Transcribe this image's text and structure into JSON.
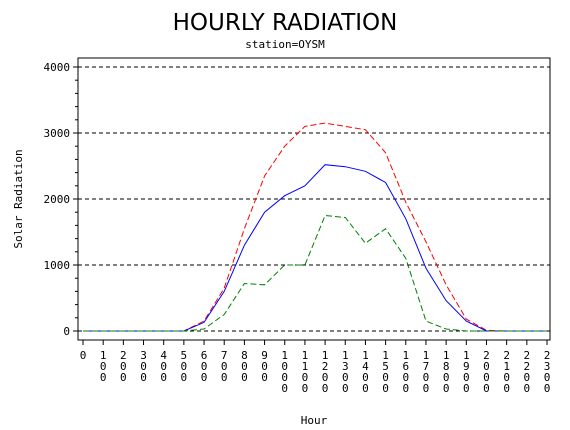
{
  "chart_data": {
    "type": "line",
    "title": "HOURLY RADIATION",
    "subtitle": "station=OYSM",
    "xlabel": "Hour",
    "ylabel": "Solar Radiation",
    "ylim": [
      0,
      4000
    ],
    "yticks": [
      0,
      1000,
      2000,
      3000,
      4000
    ],
    "ytick_labels": [
      "0",
      "1000",
      "2000",
      "3000",
      "4000"
    ],
    "xlim": [
      0,
      2300
    ],
    "x": [
      0,
      100,
      200,
      300,
      400,
      500,
      600,
      700,
      800,
      900,
      1000,
      1100,
      1200,
      1300,
      1400,
      1500,
      1600,
      1700,
      1800,
      1900,
      2000,
      2100,
      2200,
      2300
    ],
    "xtick_labels": [
      "0",
      "100",
      "200",
      "300",
      "400",
      "500",
      "600",
      "700",
      "800",
      "900",
      "1000",
      "1100",
      "1200",
      "1300",
      "1400",
      "1500",
      "1600",
      "1700",
      "1800",
      "1900",
      "2000",
      "2100",
      "2200",
      "2300"
    ],
    "grid": "horizontal dashed",
    "series": [
      {
        "color": "#ff0000",
        "style": "dashed",
        "values": [
          0,
          0,
          0,
          0,
          0,
          0,
          150,
          650,
          1550,
          2350,
          2800,
          3100,
          3150,
          3100,
          3050,
          2700,
          1950,
          1350,
          700,
          180,
          10,
          0,
          0,
          0
        ]
      },
      {
        "color": "#0000ff",
        "style": "solid",
        "values": [
          0,
          0,
          0,
          0,
          0,
          0,
          130,
          600,
          1300,
          1800,
          2050,
          2200,
          2520,
          2490,
          2420,
          2250,
          1700,
          950,
          460,
          150,
          0,
          0,
          0,
          0
        ]
      },
      {
        "color": "#008000",
        "style": "dashed",
        "values": [
          0,
          0,
          0,
          0,
          0,
          0,
          30,
          250,
          720,
          700,
          1000,
          1000,
          1750,
          1720,
          1330,
          1550,
          1100,
          150,
          30,
          0,
          0,
          0,
          0,
          0
        ]
      }
    ]
  }
}
